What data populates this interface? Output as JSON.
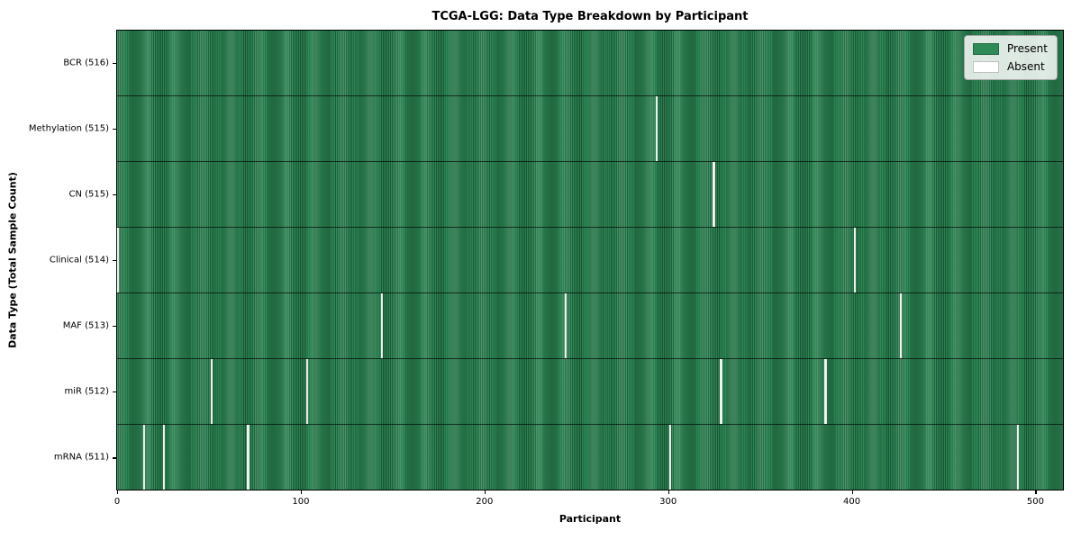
{
  "chart_data": {
    "type": "heatmap",
    "title": "TCGA-LGG: Data Type Breakdown by Participant",
    "xlabel": "Participant",
    "ylabel": "Data Type (Total Sample Count)",
    "x_ticks": [
      0,
      100,
      200,
      300,
      400,
      500
    ],
    "xlim": [
      0,
      516
    ],
    "n_participants": 516,
    "grid": false,
    "legend": {
      "position": "upper right",
      "entries": [
        {
          "label": "Present",
          "color": "#2e8b57"
        },
        {
          "label": "Absent",
          "color": "#ffffff"
        }
      ]
    },
    "rows": [
      {
        "label": "BCR (516)",
        "data_type": "BCR",
        "present_count": 516,
        "absent_participants": []
      },
      {
        "label": "Methylation (515)",
        "data_type": "Methylation",
        "present_count": 515,
        "absent_participants": [
          294
        ]
      },
      {
        "label": "CN (515)",
        "data_type": "CN",
        "present_count": 515,
        "absent_participants": [
          325
        ]
      },
      {
        "label": "Clinical (514)",
        "data_type": "Clinical",
        "present_count": 514,
        "absent_participants": [
          0,
          402
        ]
      },
      {
        "label": "MAF (513)",
        "data_type": "MAF",
        "present_count": 513,
        "absent_participants": [
          144,
          244,
          427
        ]
      },
      {
        "label": "miR (512)",
        "data_type": "miR",
        "present_count": 512,
        "absent_participants": [
          51,
          103,
          329,
          386
        ]
      },
      {
        "label": "mRNA (511)",
        "data_type": "mRNA",
        "present_count": 511,
        "absent_participants": [
          14,
          25,
          71,
          301,
          491
        ]
      }
    ]
  },
  "colors": {
    "present": "#2e8b57",
    "present_edge": "#1d5c39",
    "absent": "#ffffff",
    "background": "#ffffff",
    "border": "#000000"
  }
}
